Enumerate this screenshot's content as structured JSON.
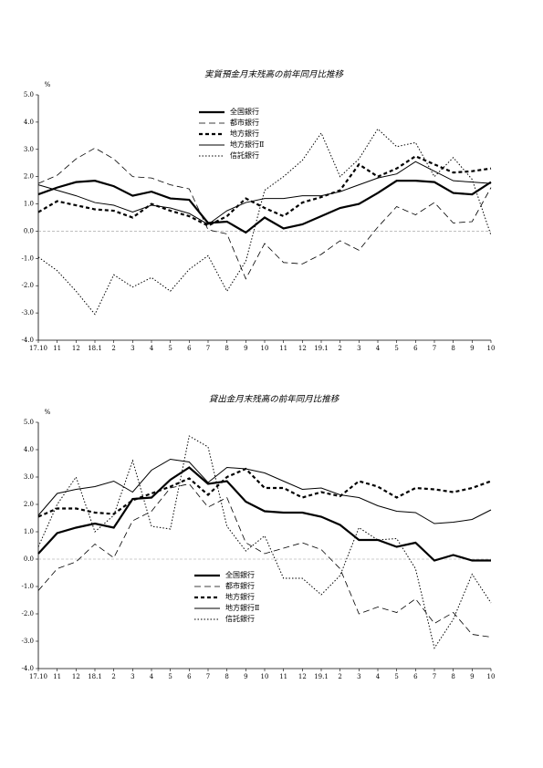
{
  "chart_data": [
    {
      "type": "line",
      "title": "実質預金月末残高の前年同月比推移",
      "y_unit": "%",
      "categories": [
        "17.10",
        "11",
        "12",
        "18.1",
        "2",
        "3",
        "4",
        "5",
        "6",
        "7",
        "8",
        "9",
        "10",
        "11",
        "12",
        "19.1",
        "2",
        "3",
        "4",
        "5",
        "6",
        "7",
        "8",
        "9",
        "10"
      ],
      "ylim": [
        -4,
        5
      ],
      "yticks": [
        {
          "value": -4,
          "label": "-4.0"
        },
        {
          "value": -3,
          "label": "-3.0"
        },
        {
          "value": -2,
          "label": "-2.0"
        },
        {
          "value": -1,
          "label": "-1.0"
        },
        {
          "value": 0,
          "label": "0.0"
        },
        {
          "value": 1,
          "label": "1.0"
        },
        {
          "value": 2,
          "label": "2.0"
        },
        {
          "value": 3,
          "label": "3.0"
        },
        {
          "value": 4,
          "label": "4.0"
        },
        {
          "value": 5,
          "label": "5.0"
        }
      ],
      "series": [
        {
          "name": "全国銀行",
          "color": "#000000",
          "values": [
            1.35,
            1.6,
            1.8,
            1.85,
            1.65,
            1.3,
            1.45,
            1.2,
            1.15,
            0.3,
            0.35,
            -0.05,
            0.5,
            0.1,
            0.25,
            0.55,
            0.85,
            1.0,
            1.4,
            1.85,
            1.85,
            1.8,
            1.4,
            1.35,
            1.8
          ]
        },
        {
          "name": "都市銀行",
          "color": "#000000",
          "values": [
            1.75,
            2.05,
            2.65,
            3.05,
            2.65,
            2.0,
            1.95,
            1.7,
            1.55,
            0.05,
            -0.1,
            -1.75,
            -0.45,
            -1.15,
            -1.2,
            -0.85,
            -0.35,
            -0.7,
            0.15,
            0.9,
            0.6,
            1.05,
            0.3,
            0.35,
            1.6
          ]
        },
        {
          "name": "地方銀行",
          "color": "#000000",
          "values": [
            0.7,
            1.1,
            0.95,
            0.8,
            0.75,
            0.5,
            1.0,
            0.75,
            0.55,
            0.2,
            0.55,
            1.2,
            0.85,
            0.55,
            1.05,
            1.25,
            1.5,
            2.45,
            2.0,
            2.3,
            2.75,
            2.45,
            2.15,
            2.2,
            2.3
          ]
        },
        {
          "name": "地方銀行Ⅱ",
          "color": "#000000",
          "values": [
            1.7,
            1.5,
            1.3,
            1.05,
            0.95,
            0.7,
            0.95,
            0.85,
            0.65,
            0.25,
            0.75,
            1.05,
            1.2,
            1.2,
            1.3,
            1.3,
            1.45,
            1.7,
            1.95,
            2.1,
            2.55,
            2.2,
            1.85,
            1.8,
            1.75
          ]
        },
        {
          "name": "信託銀行",
          "color": "#000000",
          "values": [
            -0.95,
            -1.45,
            -2.2,
            -3.05,
            -1.6,
            -2.05,
            -1.7,
            -2.2,
            -1.4,
            -0.9,
            -2.2,
            -1.1,
            1.5,
            2.0,
            2.6,
            3.6,
            2.0,
            2.65,
            3.75,
            3.1,
            3.25,
            2.0,
            2.7,
            1.9,
            -0.15
          ]
        }
      ]
    },
    {
      "type": "line",
      "title": "貸出金月末残高の前年同月比推移",
      "y_unit": "%",
      "categories": [
        "17.10",
        "11",
        "12",
        "18.1",
        "2",
        "3",
        "4",
        "5",
        "6",
        "7",
        "8",
        "9",
        "10",
        "11",
        "12",
        "19.1",
        "2",
        "3",
        "4",
        "5",
        "6",
        "7",
        "8",
        "9",
        "10"
      ],
      "ylim": [
        -4,
        5
      ],
      "yticks": [
        {
          "value": -4,
          "label": "-4.0"
        },
        {
          "value": -3,
          "label": "-3.0"
        },
        {
          "value": -2,
          "label": "-2.0"
        },
        {
          "value": -1,
          "label": "-1.0"
        },
        {
          "value": 0,
          "label": "0.0"
        },
        {
          "value": 1,
          "label": "1.0"
        },
        {
          "value": 2,
          "label": "2.0"
        },
        {
          "value": 3,
          "label": "3.0"
        },
        {
          "value": 4,
          "label": "4.0"
        },
        {
          "value": 5,
          "label": "5.0"
        }
      ],
      "series": [
        {
          "name": "全国銀行",
          "color": "#000000",
          "values": [
            0.2,
            0.95,
            1.15,
            1.3,
            1.15,
            2.2,
            2.25,
            2.9,
            3.35,
            2.75,
            2.85,
            2.1,
            1.75,
            1.7,
            1.7,
            1.55,
            1.25,
            0.7,
            0.7,
            0.45,
            0.6,
            -0.05,
            0.15,
            -0.05,
            -0.05
          ]
        },
        {
          "name": "都市銀行",
          "color": "#000000",
          "values": [
            -1.15,
            -0.35,
            -0.1,
            0.55,
            0.05,
            1.4,
            1.75,
            2.6,
            2.75,
            1.9,
            2.25,
            0.6,
            0.2,
            0.4,
            0.6,
            0.35,
            -0.35,
            -2.0,
            -1.75,
            -1.95,
            -1.45,
            -2.35,
            -1.95,
            -2.75,
            -2.85
          ]
        },
        {
          "name": "地方銀行",
          "color": "#000000",
          "values": [
            1.55,
            1.85,
            1.85,
            1.7,
            1.65,
            2.15,
            2.4,
            2.65,
            2.95,
            2.35,
            3.0,
            3.3,
            2.6,
            2.6,
            2.25,
            2.45,
            2.3,
            2.85,
            2.65,
            2.25,
            2.6,
            2.55,
            2.45,
            2.6,
            2.85
          ]
        },
        {
          "name": "地方銀行Ⅱ",
          "color": "#000000",
          "values": [
            1.6,
            2.4,
            2.55,
            2.65,
            2.85,
            2.45,
            3.25,
            3.65,
            3.55,
            2.8,
            3.35,
            3.3,
            3.15,
            2.85,
            2.55,
            2.6,
            2.35,
            2.25,
            1.95,
            1.75,
            1.7,
            1.3,
            1.35,
            1.45,
            1.8
          ]
        },
        {
          "name": "信託銀行",
          "color": "#000000",
          "values": [
            0.45,
            2.0,
            3.0,
            1.0,
            1.6,
            3.6,
            1.2,
            1.1,
            4.5,
            4.1,
            1.2,
            0.3,
            0.85,
            -0.7,
            -0.7,
            -1.3,
            -0.6,
            1.15,
            0.7,
            0.75,
            -0.35,
            -3.25,
            -2.2,
            -0.55,
            -1.6
          ]
        }
      ]
    }
  ]
}
